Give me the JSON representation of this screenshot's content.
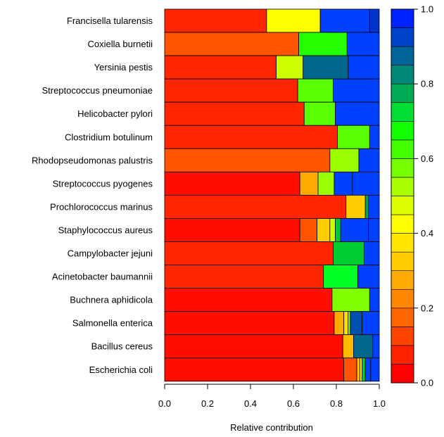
{
  "chart_data": {
    "type": "bar",
    "orientation": "horizontal",
    "stacked": true,
    "xlabel": "Relative contribution",
    "xlim": [
      0,
      1
    ],
    "xticks": [
      "0.0",
      "0.2",
      "0.4",
      "0.6",
      "0.8",
      "1.0"
    ],
    "categories": [
      "Francisella tularensis",
      "Coxiella burnetii",
      "Yersinia pestis",
      "Streptococcus pneumoniae",
      "Helicobacter pylori",
      "Clostridium botulinum",
      "Rhodopseudomonas palustris",
      "Streptococcus pyogenes",
      "Prochlorococcus marinus",
      "Staphylococcus aureus",
      "Campylobacter jejuni",
      "Acinetobacter baumannii",
      "Buchnera aphidicola",
      "Salmonella enterica",
      "Bacillus cereus",
      "Escherichia coli"
    ],
    "segments": [
      [
        [
          0.475,
          "#FF2600"
        ],
        [
          0.25,
          "#FFFF00"
        ],
        [
          0.23,
          "#0040FF"
        ],
        [
          0.045,
          "#0033CC"
        ]
      ],
      [
        [
          0.625,
          "#FF5500"
        ],
        [
          0.225,
          "#26FF00"
        ],
        [
          0.15,
          "#0040FF"
        ]
      ],
      [
        [
          0.52,
          "#FF2600"
        ],
        [
          0.125,
          "#CCFF00"
        ],
        [
          0.21,
          "#00668C"
        ],
        [
          0.145,
          "#0040FF"
        ]
      ],
      [
        [
          0.62,
          "#FF2600"
        ],
        [
          0.165,
          "#59FF00"
        ],
        [
          0.215,
          "#0040FF"
        ]
      ],
      [
        [
          0.65,
          "#FF2600"
        ],
        [
          0.145,
          "#59FF00"
        ],
        [
          0.205,
          "#0040FF"
        ]
      ],
      [
        [
          0.805,
          "#FF2600"
        ],
        [
          0.15,
          "#59FF00"
        ],
        [
          0.045,
          "#0040FF"
        ]
      ],
      [
        [
          0.77,
          "#FF5500"
        ],
        [
          0.135,
          "#99FF00"
        ],
        [
          0.095,
          "#0040FF"
        ]
      ],
      [
        [
          0.63,
          "#FF0D00"
        ],
        [
          0.085,
          "#FFAA00"
        ],
        [
          0.075,
          "#99FF00"
        ],
        [
          0.085,
          "#0040FF"
        ],
        [
          0.125,
          "#0040FF"
        ]
      ],
      [
        [
          0.845,
          "#FF2600"
        ],
        [
          0.09,
          "#FFCC00"
        ],
        [
          0.015,
          "#00A650"
        ],
        [
          0.05,
          "#0040FF"
        ]
      ],
      [
        [
          0.63,
          "#FF0D00"
        ],
        [
          0.08,
          "#FF5500"
        ],
        [
          0.06,
          "#FFCC00"
        ],
        [
          0.025,
          "#CCFF00"
        ],
        [
          0.025,
          "#00CC33"
        ],
        [
          0.13,
          "#0040FF"
        ],
        [
          0.05,
          "#0040FF"
        ]
      ],
      [
        [
          0.785,
          "#FF2600"
        ],
        [
          0.145,
          "#00CC33"
        ],
        [
          0.07,
          "#0040FF"
        ]
      ],
      [
        [
          0.74,
          "#FF2600"
        ],
        [
          0.16,
          "#00FF22"
        ],
        [
          0.1,
          "#0040FF"
        ]
      ],
      [
        [
          0.78,
          "#FF0D00"
        ],
        [
          0.175,
          "#80FF00"
        ],
        [
          0.045,
          "#0040FF"
        ]
      ],
      [
        [
          0.79,
          "#FF0D00"
        ],
        [
          0.045,
          "#FFAA00"
        ],
        [
          0.02,
          "#FFDD00"
        ],
        [
          0.01,
          "#99FF00"
        ],
        [
          0.055,
          "#0050B0"
        ],
        [
          0.08,
          "#0040FF"
        ]
      ],
      [
        [
          0.83,
          "#FF0D00"
        ],
        [
          0.05,
          "#FFBB00"
        ],
        [
          0.09,
          "#00668C"
        ],
        [
          0.03,
          "#0040FF"
        ]
      ],
      [
        [
          0.835,
          "#FF0D00"
        ],
        [
          0.06,
          "#FF5500"
        ],
        [
          0.015,
          "#FFBB00"
        ],
        [
          0.01,
          "#FFFF00"
        ],
        [
          0.015,
          "#00CC33"
        ],
        [
          0.025,
          "#0040FF"
        ],
        [
          0.04,
          "#0040FF"
        ]
      ]
    ],
    "colorbar": {
      "range": [
        0,
        1
      ],
      "tick_labels": [
        "0.0",
        "0.2",
        "0.4",
        "0.6",
        "0.8",
        "1.0"
      ],
      "colors": [
        "#FF0000",
        "#FF2200",
        "#FF4400",
        "#FF6600",
        "#FF8800",
        "#FFAA00",
        "#FFCC00",
        "#FFE500",
        "#FFFF00",
        "#DDFF00",
        "#AAFF00",
        "#77FF00",
        "#44FF00",
        "#11FF00",
        "#00DD33",
        "#00AA55",
        "#008877",
        "#006699",
        "#0044CC",
        "#0022FF"
      ]
    },
    "grid": false,
    "legend": "colorbar-right"
  }
}
